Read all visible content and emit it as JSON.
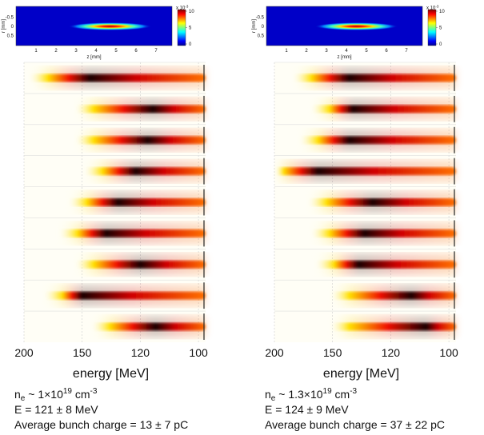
{
  "panels": [
    {
      "top_image": {
        "x_label": "z [mm]",
        "y_label": "r [mm]",
        "xticks": [
          1,
          2,
          3,
          4,
          5,
          6,
          7
        ],
        "yticks": [
          -0.5,
          0,
          0.5
        ],
        "colorbar_ticks": [
          10,
          5,
          0
        ],
        "colorbar_multiplier": {
          "text": "x 10",
          "sup": "-3"
        },
        "bunch_center": 4.7
      },
      "spectra": {
        "type": "heatmap-strips",
        "x_label": "energy [MeV]",
        "xscale": "reciprocal",
        "xlim": [
          200,
          98
        ],
        "xticks": [
          200,
          150,
          120,
          100
        ],
        "peak_energy": [
          145,
          115,
          117,
          122,
          130,
          136,
          120,
          150,
          114
        ],
        "onset_energy": [
          176,
          143,
          143,
          138,
          147,
          153,
          143,
          164,
          134
        ]
      },
      "caption": {
        "density": {
          "symbol": "n",
          "sub": "e",
          "text": " ~ 1×10",
          "sup": "19",
          "unit": " cm",
          "unit_sup": "-3"
        },
        "energy": "E = 121 ± 8 MeV",
        "charge": "Average bunch charge = 13 ± 7 pC"
      }
    },
    {
      "top_image": {
        "x_label": "z [mm]",
        "y_label": "r [mm]",
        "xticks": [
          1,
          2,
          3,
          4,
          5,
          6,
          7
        ],
        "yticks": [
          -0.5,
          0,
          0.5
        ],
        "colorbar_ticks": [
          10,
          5,
          0
        ],
        "colorbar_multiplier": {
          "text": "x 10",
          "sup": "-3"
        },
        "bunch_center": 4.5
      },
      "spectra": {
        "type": "heatmap-strips",
        "x_label": "energy [MeV]",
        "xscale": "reciprocal",
        "xlim": [
          200,
          98
        ],
        "xticks": [
          200,
          150,
          120,
          100
        ],
        "peak_energy": [
          140,
          138,
          140,
          160,
          128,
          132,
          135,
          112,
          107
        ],
        "onset_energy": [
          165,
          152,
          160,
          190,
          154,
          152,
          149,
          140,
          140
        ]
      },
      "caption": {
        "density": {
          "symbol": "n",
          "sub": "e",
          "text": " ~ 1.3×10",
          "sup": "19",
          "unit": " cm",
          "unit_sup": "-3"
        },
        "energy": "E = 124 ± 9 MeV",
        "charge": "Average bunch charge = 37 ± 22 pC"
      }
    }
  ]
}
